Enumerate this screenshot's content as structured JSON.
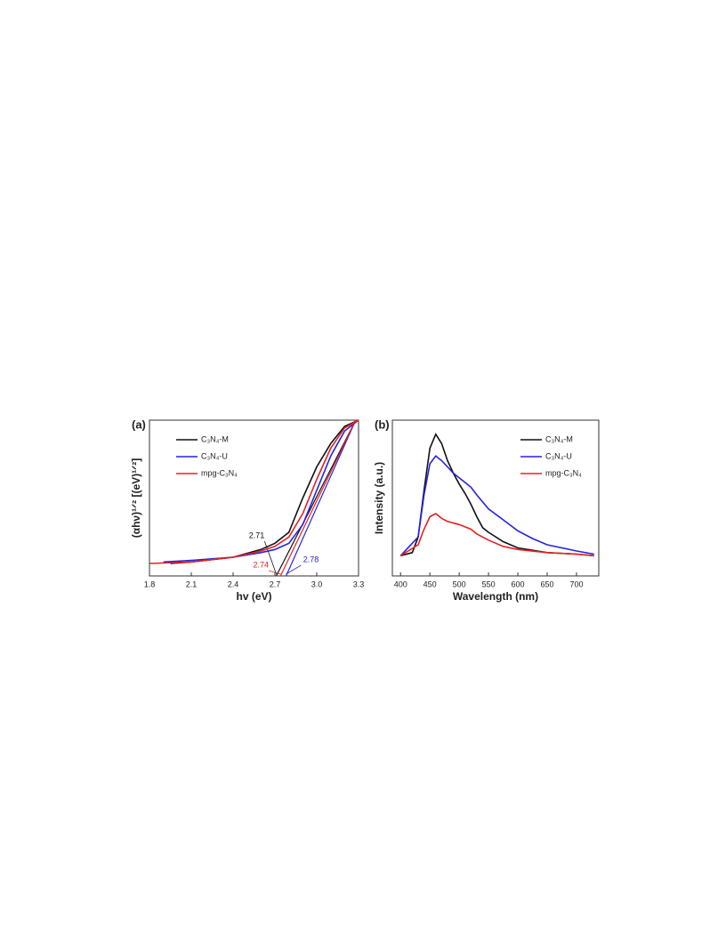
{
  "chart_data": [
    {
      "type": "line",
      "panel_label": "(a)",
      "xlabel": "hv (eV)",
      "ylabel": "(αhν)¹ᐟ² [(eV)¹ᐟ²]",
      "xlim": [
        1.8,
        3.3
      ],
      "ylim": [
        0,
        1
      ],
      "xticks": [
        1.8,
        2.1,
        2.4,
        2.7,
        {
          "value": 3,
          "label": "3.0"
        },
        3.3
      ],
      "legend": "upper left",
      "series": [
        {
          "name": "C₃N₄-M",
          "color": "#111111",
          "band_gap": 2.71,
          "x": [
            1.95,
            2.1,
            2.4,
            2.6,
            2.7,
            2.8,
            2.9,
            3.0,
            3.1,
            3.2,
            3.3
          ],
          "values": [
            0.08,
            0.09,
            0.12,
            0.17,
            0.21,
            0.28,
            0.5,
            0.7,
            0.85,
            0.96,
            1.0
          ]
        },
        {
          "name": "C₃N₄-U",
          "color": "#2424e0",
          "band_gap": 2.78,
          "x": [
            1.9,
            2.1,
            2.4,
            2.6,
            2.7,
            2.8,
            2.9,
            3.0,
            3.1,
            3.2,
            3.3
          ],
          "values": [
            0.09,
            0.1,
            0.12,
            0.15,
            0.17,
            0.21,
            0.33,
            0.55,
            0.77,
            0.93,
            1.0
          ]
        },
        {
          "name": "mpg-C₃N₄",
          "color": "#e82020",
          "band_gap": 2.74,
          "x": [
            1.8,
            2.1,
            2.4,
            2.6,
            2.7,
            2.8,
            2.9,
            3.0,
            3.1,
            3.2,
            3.3
          ],
          "values": [
            0.08,
            0.09,
            0.12,
            0.16,
            0.19,
            0.25,
            0.4,
            0.62,
            0.82,
            0.95,
            1.0
          ]
        }
      ]
    },
    {
      "type": "line",
      "panel_label": "(b)",
      "xlabel": "Wavelength (nm)",
      "ylabel": "Intensity (a.u.)",
      "xlim": [
        386,
        738
      ],
      "ylim": [
        0,
        1
      ],
      "xticks": [
        400,
        450,
        500,
        550,
        600,
        650,
        700
      ],
      "legend": "upper right",
      "series": [
        {
          "name": "C₃N₄-M",
          "color": "#111111",
          "x": [
            400,
            420,
            430,
            440,
            450,
            460,
            470,
            480,
            490,
            500,
            510,
            520,
            530,
            540,
            550,
            575,
            600,
            650,
            700,
            730
          ],
          "values": [
            0.13,
            0.15,
            0.25,
            0.55,
            0.82,
            0.91,
            0.85,
            0.74,
            0.66,
            0.59,
            0.53,
            0.46,
            0.38,
            0.31,
            0.28,
            0.22,
            0.18,
            0.15,
            0.14,
            0.13
          ]
        },
        {
          "name": "C₃N₄-U",
          "color": "#2424e0",
          "x": [
            400,
            430,
            440,
            450,
            460,
            470,
            480,
            490,
            500,
            510,
            520,
            530,
            550,
            575,
            600,
            625,
            650,
            700,
            730
          ],
          "values": [
            0.13,
            0.25,
            0.52,
            0.72,
            0.77,
            0.74,
            0.7,
            0.66,
            0.63,
            0.6,
            0.57,
            0.52,
            0.43,
            0.36,
            0.29,
            0.24,
            0.2,
            0.16,
            0.14
          ]
        },
        {
          "name": "mpg-C₃N₄",
          "color": "#e82020",
          "x": [
            400,
            430,
            440,
            450,
            460,
            470,
            480,
            500,
            520,
            530,
            550,
            575,
            600,
            650,
            700,
            730
          ],
          "values": [
            0.13,
            0.2,
            0.3,
            0.38,
            0.4,
            0.37,
            0.35,
            0.33,
            0.3,
            0.27,
            0.23,
            0.19,
            0.17,
            0.15,
            0.14,
            0.13
          ]
        }
      ]
    }
  ]
}
